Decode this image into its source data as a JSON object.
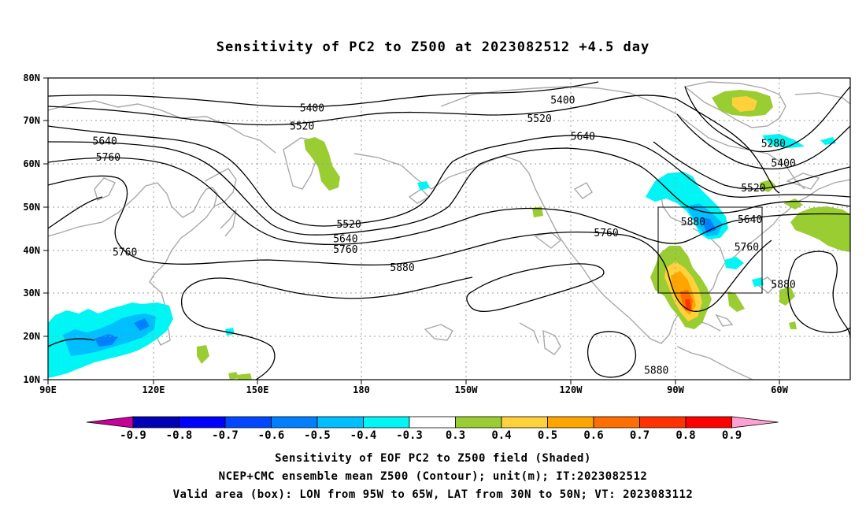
{
  "title": "Sensitivity of PC2 to Z500 at 2023082512 +4.5 day",
  "map": {
    "lon_range": [
      90,
      330
    ],
    "lat_range": [
      10,
      80
    ],
    "lon_ticks": [
      "90E",
      "120E",
      "150E",
      "180",
      "150W",
      "120W",
      "90W",
      "60W"
    ],
    "lat_ticks": [
      "10N",
      "20N",
      "30N",
      "40N",
      "50N",
      "60N",
      "70N",
      "80N"
    ],
    "contour_labels": [
      {
        "text": "5400",
        "lon": 169,
        "lat": 72.8
      },
      {
        "text": "5400",
        "lon": 244,
        "lat": 74.6
      },
      {
        "text": "5520",
        "lon": 166,
        "lat": 68.6
      },
      {
        "text": "5520",
        "lon": 237,
        "lat": 70.3
      },
      {
        "text": "5640",
        "lon": 107,
        "lat": 65.1
      },
      {
        "text": "5640",
        "lon": 250,
        "lat": 66.2
      },
      {
        "text": "5760",
        "lon": 108,
        "lat": 61.4
      },
      {
        "text": "5520",
        "lon": 180,
        "lat": 45.8
      },
      {
        "text": "5640",
        "lon": 179,
        "lat": 42.4
      },
      {
        "text": "5760",
        "lon": 179,
        "lat": 40.0
      },
      {
        "text": "5880",
        "lon": 196,
        "lat": 35.8
      },
      {
        "text": "5760",
        "lon": 257,
        "lat": 43.8
      },
      {
        "text": "5880",
        "lon": 283,
        "lat": 46.4
      },
      {
        "text": "5760",
        "lon": 113,
        "lat": 39.3
      },
      {
        "text": "5280",
        "lon": 307,
        "lat": 64.6
      },
      {
        "text": "5400",
        "lon": 310,
        "lat": 60.0
      },
      {
        "text": "5520",
        "lon": 301,
        "lat": 54.2
      },
      {
        "text": "5640",
        "lon": 300,
        "lat": 46.9
      },
      {
        "text": "5760",
        "lon": 299,
        "lat": 40.5
      },
      {
        "text": "5880",
        "lon": 310,
        "lat": 31.8
      },
      {
        "text": "5880",
        "lon": 272,
        "lat": 11.9
      }
    ],
    "valid_box": {
      "lon_min": 265,
      "lon_max": 295,
      "lat_min": 30,
      "lat_max": 50
    }
  },
  "colorbar": {
    "labels": [
      "-0.9",
      "-0.8",
      "-0.7",
      "-0.6",
      "-0.5",
      "-0.4",
      "-0.3",
      "0.3",
      "0.4",
      "0.5",
      "0.6",
      "0.7",
      "0.8",
      "0.9"
    ],
    "colors": [
      "#0000b4",
      "#0000ff",
      "#0048ff",
      "#0080ff",
      "#00bfff",
      "#00f5f5",
      "#ffffff",
      "#9acd32",
      "#ffd23c",
      "#ffa500",
      "#ff6e00",
      "#ff3200",
      "#ff0000"
    ],
    "under_color": "#c8009a",
    "over_color": "#ffa0d2"
  },
  "captions": [
    "Sensitivity of EOF PC2 to Z500 field (Shaded)",
    "NCEP+CMC ensemble mean Z500 (Contour); unit(m); IT:2023082512",
    "Valid area (box): LON from 95W to 65W, LAT from 30N to 50N; VT: 2023083112"
  ]
}
